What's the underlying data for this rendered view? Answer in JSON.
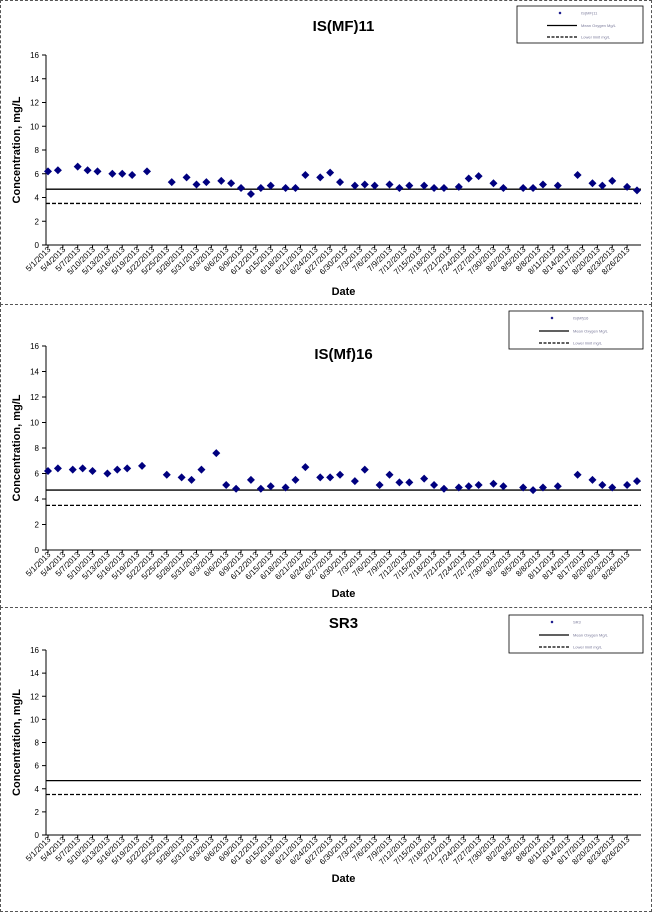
{
  "chart_data": [
    {
      "type": "scatter",
      "title": "IS(MF)11",
      "xlabel": "Date",
      "ylabel": "Concentration, mg/L",
      "ylim": [
        0,
        16
      ],
      "y_ticks": [
        "0",
        "2",
        "4",
        "6",
        "8",
        "10",
        "12",
        "14",
        "16"
      ],
      "x_tick_labels": [
        "5/1/2013",
        "5/4/2013",
        "5/7/2013",
        "5/10/2013",
        "5/13/2013",
        "5/16/2013",
        "5/19/2013",
        "5/22/2013",
        "5/25/2013",
        "5/28/2013",
        "5/31/2013",
        "6/3/2013",
        "6/6/2013",
        "6/9/2013",
        "6/12/2013",
        "6/15/2013",
        "6/18/2013",
        "6/21/2013",
        "6/24/2013",
        "6/27/2013",
        "6/30/2013",
        "7/3/2013",
        "7/6/2013",
        "7/9/2013",
        "7/12/2013",
        "7/15/2013",
        "7/18/2013",
        "7/21/2013",
        "7/24/2013",
        "7/27/2013",
        "7/30/2013",
        "8/2/2013",
        "8/5/2013",
        "8/8/2013",
        "8/11/2013",
        "8/14/2013",
        "8/17/2013",
        "8/20/2013",
        "8/23/2013",
        "8/26/2013"
      ],
      "legend": {
        "placement": "top-right",
        "entries": [
          "IS(MF)11",
          "Mean Oxygen Mg/L",
          "Lower limit mg/L"
        ]
      },
      "reference_lines": [
        {
          "y": 4.7,
          "style": "solid"
        },
        {
          "y": 3.5,
          "style": "dashed"
        }
      ],
      "series": [
        {
          "x": [
            "5/1/2013",
            "5/3/2013",
            "5/7/2013",
            "5/9/2013",
            "5/11/2013",
            "5/14/2013",
            "5/16/2013",
            "5/18/2013",
            "5/21/2013",
            "5/26/2013",
            "5/29/2013",
            "5/31/2013",
            "6/2/2013",
            "6/5/2013",
            "6/7/2013",
            "6/9/2013",
            "6/11/2013",
            "6/13/2013",
            "6/15/2013",
            "6/18/2013",
            "6/20/2013",
            "6/22/2013",
            "6/25/2013",
            "6/27/2013",
            "6/29/2013",
            "7/2/2013",
            "7/4/2013",
            "7/6/2013",
            "7/9/2013",
            "7/11/2013",
            "7/13/2013",
            "7/16/2013",
            "7/18/2013",
            "7/20/2013",
            "7/23/2013",
            "7/25/2013",
            "7/27/2013",
            "7/30/2013",
            "8/1/2013",
            "8/5/2013",
            "8/7/2013",
            "8/9/2013",
            "8/12/2013",
            "8/16/2013",
            "8/19/2013",
            "8/21/2013",
            "8/23/2013",
            "8/26/2013",
            "8/28/2013"
          ],
          "y": [
            6.2,
            6.3,
            6.6,
            6.3,
            6.2,
            6.0,
            6.0,
            5.9,
            6.2,
            5.3,
            5.7,
            5.1,
            5.3,
            5.4,
            5.2,
            4.8,
            4.3,
            4.8,
            5.0,
            4.8,
            4.8,
            5.9,
            5.7,
            6.1,
            5.3,
            5.0,
            5.1,
            5.0,
            5.1,
            4.8,
            5.0,
            5.0,
            4.8,
            4.8,
            4.9,
            5.6,
            5.8,
            5.2,
            4.8,
            4.8,
            4.8,
            5.1,
            5.0,
            5.9,
            5.2,
            5.0,
            5.4,
            4.9,
            4.6
          ]
        }
      ]
    },
    {
      "type": "scatter",
      "title": "IS(Mf)16",
      "xlabel": "Date",
      "ylabel": "Concentration, mg/L",
      "ylim": [
        0,
        16
      ],
      "y_ticks": [
        "0",
        "2",
        "4",
        "6",
        "8",
        "10",
        "12",
        "14",
        "16"
      ],
      "x_tick_labels": [
        "5/1/2013",
        "5/4/2013",
        "5/7/2013",
        "5/10/2013",
        "5/13/2013",
        "5/16/2013",
        "5/19/2013",
        "5/22/2013",
        "5/25/2013",
        "5/28/2013",
        "5/31/2013",
        "6/3/2013",
        "6/6/2013",
        "6/9/2013",
        "6/12/2013",
        "6/15/2013",
        "6/18/2013",
        "6/21/2013",
        "6/24/2013",
        "6/27/2013",
        "6/30/2013",
        "7/3/2013",
        "7/6/2013",
        "7/9/2013",
        "7/12/2013",
        "7/15/2013",
        "7/18/2013",
        "7/21/2013",
        "7/24/2013",
        "7/27/2013",
        "7/30/2013",
        "8/2/2013",
        "8/5/2013",
        "8/8/2013",
        "8/11/2013",
        "8/14/2013",
        "8/17/2013",
        "8/20/2013",
        "8/23/2013",
        "8/26/2013"
      ],
      "legend": {
        "placement": "top-right",
        "entries": [
          "IS(Mf)16",
          "Mean Oxygen Mg/L",
          "Lower limit mg/L"
        ]
      },
      "reference_lines": [
        {
          "y": 4.7,
          "style": "solid"
        },
        {
          "y": 3.5,
          "style": "dashed"
        }
      ],
      "series": [
        {
          "x": [
            "5/1/2013",
            "5/3/2013",
            "5/6/2013",
            "5/8/2013",
            "5/10/2013",
            "5/13/2013",
            "5/15/2013",
            "5/17/2013",
            "5/20/2013",
            "5/25/2013",
            "5/28/2013",
            "5/30/2013",
            "6/1/2013",
            "6/4/2013",
            "6/6/2013",
            "6/8/2013",
            "6/11/2013",
            "6/13/2013",
            "6/15/2013",
            "6/18/2013",
            "6/20/2013",
            "6/22/2013",
            "6/25/2013",
            "6/27/2013",
            "6/29/2013",
            "7/2/2013",
            "7/4/2013",
            "7/7/2013",
            "7/9/2013",
            "7/11/2013",
            "7/13/2013",
            "7/16/2013",
            "7/18/2013",
            "7/20/2013",
            "7/23/2013",
            "7/25/2013",
            "7/27/2013",
            "7/30/2013",
            "8/1/2013",
            "8/5/2013",
            "8/7/2013",
            "8/9/2013",
            "8/12/2013",
            "8/16/2013",
            "8/19/2013",
            "8/21/2013",
            "8/23/2013",
            "8/26/2013",
            "8/28/2013"
          ],
          "y": [
            6.2,
            6.4,
            6.3,
            6.4,
            6.2,
            6.0,
            6.3,
            6.4,
            6.6,
            5.9,
            5.7,
            5.5,
            6.3,
            7.6,
            5.1,
            4.8,
            5.5,
            4.8,
            5.0,
            4.9,
            5.5,
            6.5,
            5.7,
            5.7,
            5.9,
            5.4,
            6.3,
            5.1,
            5.9,
            5.3,
            5.3,
            5.6,
            5.1,
            4.8,
            4.9,
            5.0,
            5.1,
            5.2,
            5.0,
            4.9,
            4.7,
            4.9,
            5.0,
            5.9,
            5.5,
            5.1,
            4.9,
            5.1,
            5.4
          ]
        }
      ]
    },
    {
      "type": "scatter",
      "title": "SR3",
      "xlabel": "Date",
      "ylabel": "Concentration, mg/L",
      "ylim": [
        0,
        16
      ],
      "y_ticks": [
        "0",
        "2",
        "4",
        "6",
        "8",
        "10",
        "12",
        "14",
        "16"
      ],
      "x_tick_labels": [
        "5/1/2013",
        "5/4/2013",
        "5/7/2013",
        "5/10/2013",
        "5/13/2013",
        "5/16/2013",
        "5/19/2013",
        "5/22/2013",
        "5/25/2013",
        "5/28/2013",
        "5/31/2013",
        "6/3/2013",
        "6/6/2013",
        "6/9/2013",
        "6/12/2013",
        "6/15/2013",
        "6/18/2013",
        "6/21/2013",
        "6/24/2013",
        "6/27/2013",
        "6/30/2013",
        "7/3/2013",
        "7/6/2013",
        "7/9/2013",
        "7/12/2013",
        "7/15/2013",
        "7/18/2013",
        "7/21/2013",
        "7/24/2013",
        "7/27/2013",
        "7/30/2013",
        "8/2/2013",
        "8/5/2013",
        "8/8/2013",
        "8/11/2013",
        "8/14/2013",
        "8/17/2013",
        "8/20/2013",
        "8/23/2013",
        "8/26/2013"
      ],
      "legend": {
        "placement": "top-right",
        "entries": [
          "SR3",
          "Mean Oxygen Mg/L",
          "Lower limit mg/L"
        ]
      },
      "reference_lines": [
        {
          "y": 4.7,
          "style": "solid"
        },
        {
          "y": 3.5,
          "style": "dashed"
        }
      ],
      "series": [
        {
          "x": [],
          "y": []
        }
      ]
    }
  ],
  "colors": {
    "marker": "#00007f",
    "line": "#000000",
    "frame": "#555555"
  }
}
